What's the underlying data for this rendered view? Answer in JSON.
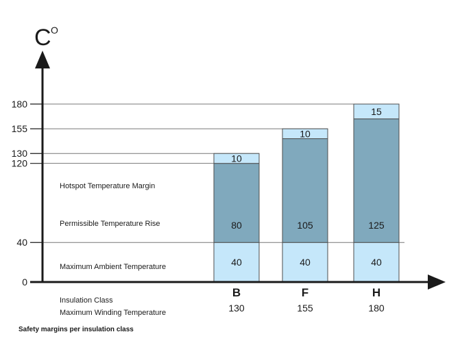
{
  "chart_data": {
    "type": "bar",
    "stacked": true,
    "title": "",
    "caption": "Safety margins per insulation class",
    "unit": {
      "base": "C",
      "superscript": "O"
    },
    "y_ticks": [
      0,
      40,
      120,
      130,
      155,
      180
    ],
    "ylim": [
      0,
      180
    ],
    "categories": [
      "B",
      "F",
      "H"
    ],
    "winding_temperatures": [
      "130",
      "155",
      "180"
    ],
    "series": [
      {
        "name": "Maximum Ambient Temperature",
        "values": [
          40,
          40,
          40
        ],
        "color": "#c5e7fa"
      },
      {
        "name": "Permissible Temperature Rise",
        "values": [
          80,
          105,
          125
        ],
        "color": "#80a9bd"
      },
      {
        "name": "Hotspot Temperature Margin",
        "values": [
          10,
          10,
          15
        ],
        "color": "#c5e7fa"
      }
    ],
    "row_labels": {
      "class": "Insulation Class",
      "winding": "Maximum Winding Temperature"
    },
    "colors": {
      "axis": "#1a1a1a",
      "grid": "#777777",
      "bar_border": "#4d4d4d"
    }
  }
}
